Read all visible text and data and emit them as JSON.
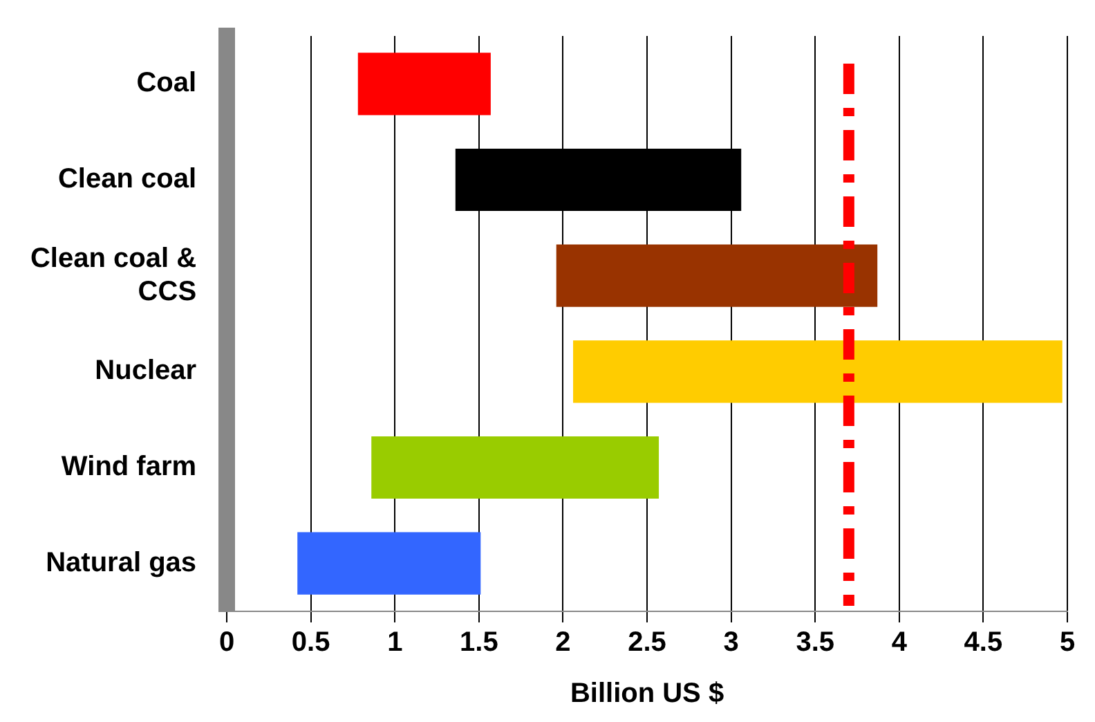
{
  "chart_data": {
    "type": "bar",
    "orientation": "horizontal",
    "xlabel": "Billion US $",
    "categories": [
      "Coal",
      "Clean coal",
      "Clean coal & CCS",
      "Nuclear",
      "Wind farm",
      "Natural gas"
    ],
    "base": [
      0.78,
      1.36,
      1.96,
      2.06,
      0.86,
      0.42
    ],
    "values": [
      0.79,
      1.7,
      1.91,
      2.91,
      1.71,
      1.09
    ],
    "colors": [
      "#ff0000",
      "#000000",
      "#993300",
      "#ffcc00",
      "#99cc00",
      "#3366ff"
    ],
    "xlim": [
      0,
      5
    ],
    "xticks": [
      0,
      0.5,
      1,
      1.5,
      2,
      2.5,
      3,
      3.5,
      4,
      4.5,
      5
    ],
    "grid": "x",
    "legend": false,
    "ref_lines": [
      {
        "axis": "x",
        "value": 3.7,
        "color": "#ff0000",
        "line_style": "dashed"
      }
    ]
  }
}
